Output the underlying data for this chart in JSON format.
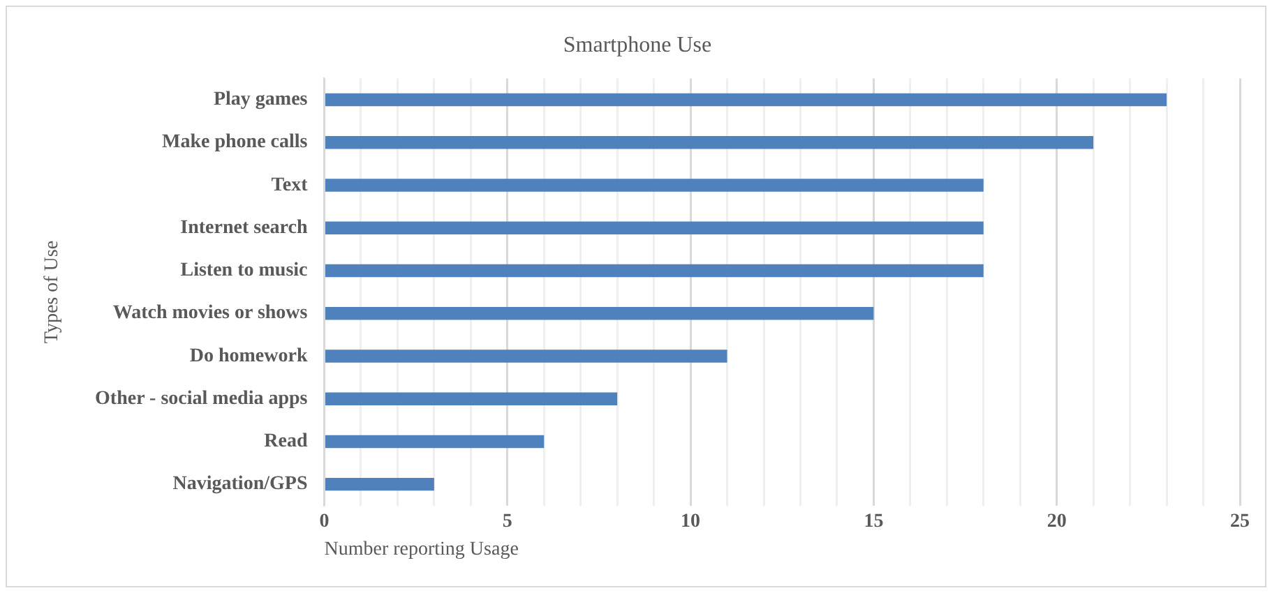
{
  "chart_data": {
    "type": "bar",
    "orientation": "horizontal",
    "title": "Smartphone Use",
    "xlabel": "Number reporting Usage",
    "ylabel": "Types of Use",
    "categories": [
      "Play games",
      "Make phone calls",
      "Text",
      "Internet search",
      "Listen to music",
      "Watch movies or shows",
      "Do homework",
      "Other - social media apps",
      "Read",
      "Navigation/GPS"
    ],
    "values": [
      23,
      21,
      18,
      18,
      18,
      15,
      11,
      8,
      6,
      3
    ],
    "color": "#4f81bd",
    "xlim": [
      0,
      25
    ],
    "xticks": [
      0,
      {
        "value": 1,
        "label": null
      },
      {
        "value": 2,
        "label": null
      },
      {
        "value": 3,
        "label": null
      },
      {
        "value": 4,
        "label": null
      },
      5,
      {
        "value": 6,
        "label": null
      },
      {
        "value": 7,
        "label": null
      },
      {
        "value": 8,
        "label": null
      },
      {
        "value": 9,
        "label": null
      },
      10,
      {
        "value": 11,
        "label": null
      },
      {
        "value": 12,
        "label": null
      },
      {
        "value": 13,
        "label": null
      },
      {
        "value": 14,
        "label": null
      },
      15,
      {
        "value": 16,
        "label": null
      },
      {
        "value": 17,
        "label": null
      },
      {
        "value": 18,
        "label": null
      },
      {
        "value": 19,
        "label": null
      },
      20,
      {
        "value": 21,
        "label": null
      },
      {
        "value": 22,
        "label": null
      },
      {
        "value": 23,
        "label": null
      },
      {
        "value": 24,
        "label": null
      },
      25
    ],
    "grid": "x",
    "legend": false
  }
}
